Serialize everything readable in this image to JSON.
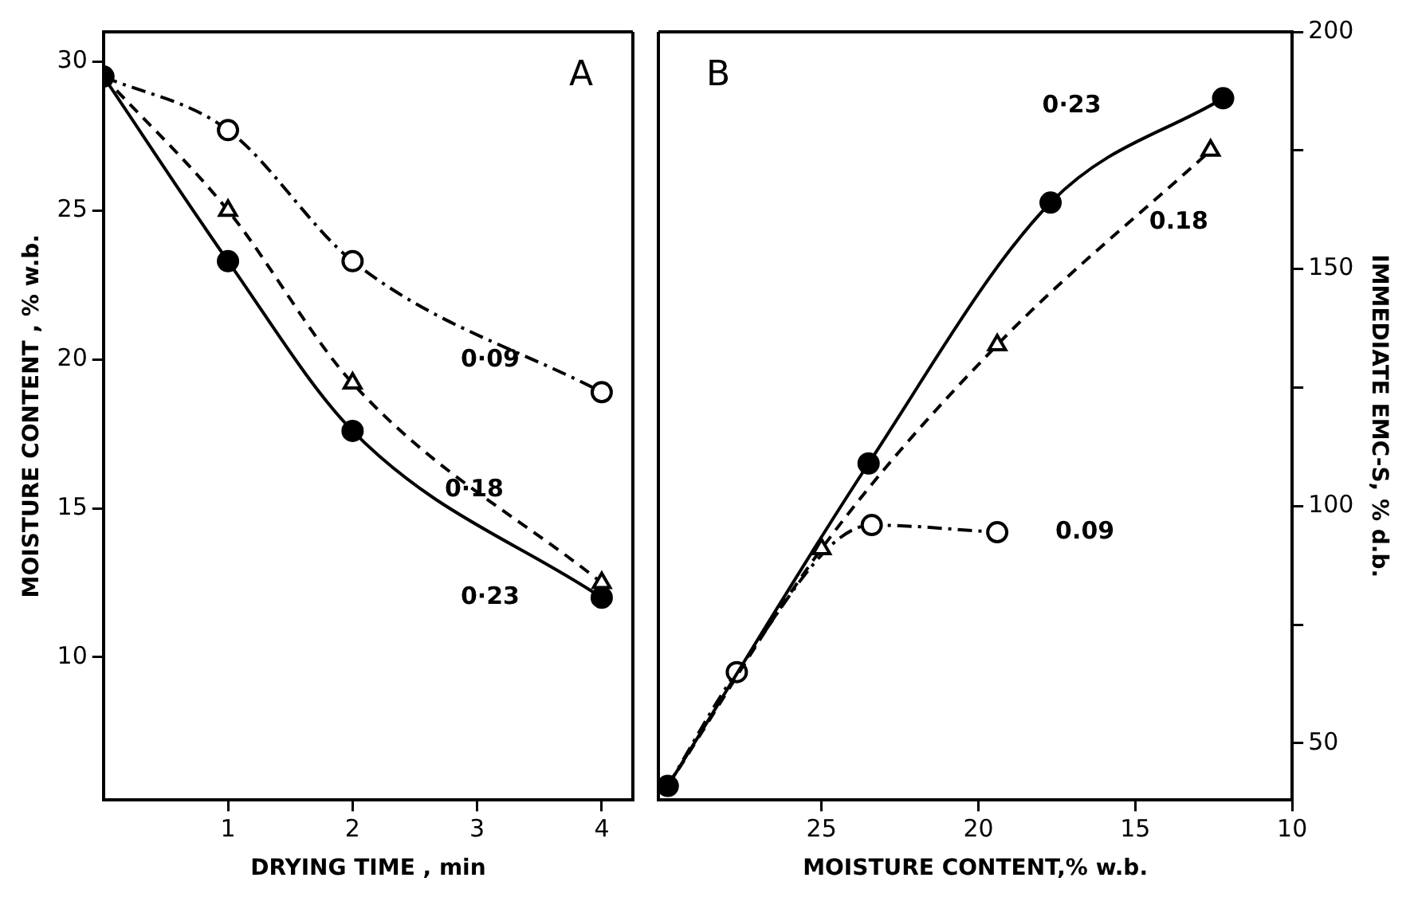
{
  "chart_data": [
    {
      "type": "line",
      "xlabel": "DRYING TIME , min",
      "ylabel": "MOISTURE CONTENT , % w.b.",
      "annotations": [
        "A"
      ],
      "xlim": [
        0,
        4.25
      ],
      "xticks": [
        1,
        2,
        3,
        4
      ],
      "ylim": [
        5.2,
        31
      ],
      "yticks": [
        10,
        15,
        20,
        25,
        30
      ],
      "grid": false,
      "legend": false,
      "series": [
        {
          "name": "0·09",
          "color": "#000000",
          "x": [
            0,
            1,
            2,
            4
          ],
          "values": [
            29.5,
            27.7,
            23.3,
            18.9
          ],
          "marker": "circle",
          "line_style": "dashdot"
        },
        {
          "name": "0·18",
          "color": "#000000",
          "x": [
            0,
            1,
            2,
            4
          ],
          "values": [
            29.5,
            25,
            19.2,
            12.5
          ],
          "marker": "triangle",
          "line_style": "dashed"
        },
        {
          "name": "0·23",
          "color": "#000000",
          "x": [
            0,
            1,
            2,
            4
          ],
          "values": [
            29.5,
            23.3,
            17.6,
            12
          ],
          "marker": "circle",
          "line_style": "solid"
        }
      ]
    },
    {
      "type": "line",
      "xlabel": "MOISTURE CONTENT,% w.b.",
      "y2label": "IMMEDIATE EMC-S, % d.b.",
      "annotations": [
        "B"
      ],
      "xlim": [
        30.2,
        10
      ],
      "xticks": [
        25,
        20,
        15,
        10
      ],
      "y2lim": [
        38,
        200
      ],
      "y2ticks": [
        50,
        {
          "value": 75,
          "label": null
        },
        100,
        {
          "value": 125,
          "label": null
        },
        150,
        {
          "value": 175,
          "label": null
        },
        200
      ],
      "grid": false,
      "legend": false,
      "series": [
        {
          "name": "0·23",
          "color": "#000000",
          "axis": "y2",
          "x": [
            29.9,
            23.5,
            17.7,
            12.2
          ],
          "values": [
            41,
            109,
            164,
            186
          ],
          "marker": "circle",
          "line_style": "solid"
        },
        {
          "name": "0.18",
          "color": "#000000",
          "axis": "y2",
          "x": [
            29.9,
            25,
            19.4,
            12.6
          ],
          "values": [
            41,
            91,
            134,
            175
          ],
          "marker": "triangle",
          "line_style": "dashed"
        },
        {
          "name": "0.09",
          "color": "#000000",
          "axis": "y2",
          "x": [
            29.9,
            27.7,
            23.4,
            19.4
          ],
          "values": [
            41,
            65,
            96,
            94.5
          ],
          "marker": "circle",
          "line_style": "dashdot"
        }
      ]
    }
  ]
}
